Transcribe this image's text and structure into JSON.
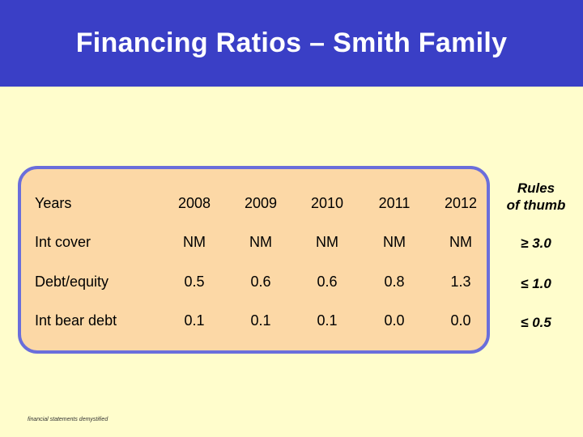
{
  "title": "Financing Ratios – Smith Family",
  "table": {
    "header_label": "Years",
    "years": [
      "2008",
      "2009",
      "2010",
      "2011",
      "2012"
    ],
    "rows": [
      {
        "label": "Int cover",
        "values": [
          "NM",
          "NM",
          "NM",
          "NM",
          "NM"
        ]
      },
      {
        "label": "Debt/equity",
        "values": [
          "0.5",
          "0.6",
          "0.6",
          "0.8",
          "1.3"
        ]
      },
      {
        "label": "Int bear debt",
        "values": [
          "0.1",
          "0.1",
          "0.1",
          "0.0",
          "0.0"
        ]
      }
    ]
  },
  "rules": {
    "heading_line1": "Rules",
    "heading_line2": "of thumb",
    "values": [
      "≥ 3.0",
      "≤ 1.0",
      "≤ 0.5"
    ]
  },
  "footer": "financial statements demystified",
  "colors": {
    "title_bar": "#3a3fc6",
    "background": "#fffdcc",
    "panel_fill": "#fcd8a6",
    "panel_border": "#6a6edb"
  }
}
